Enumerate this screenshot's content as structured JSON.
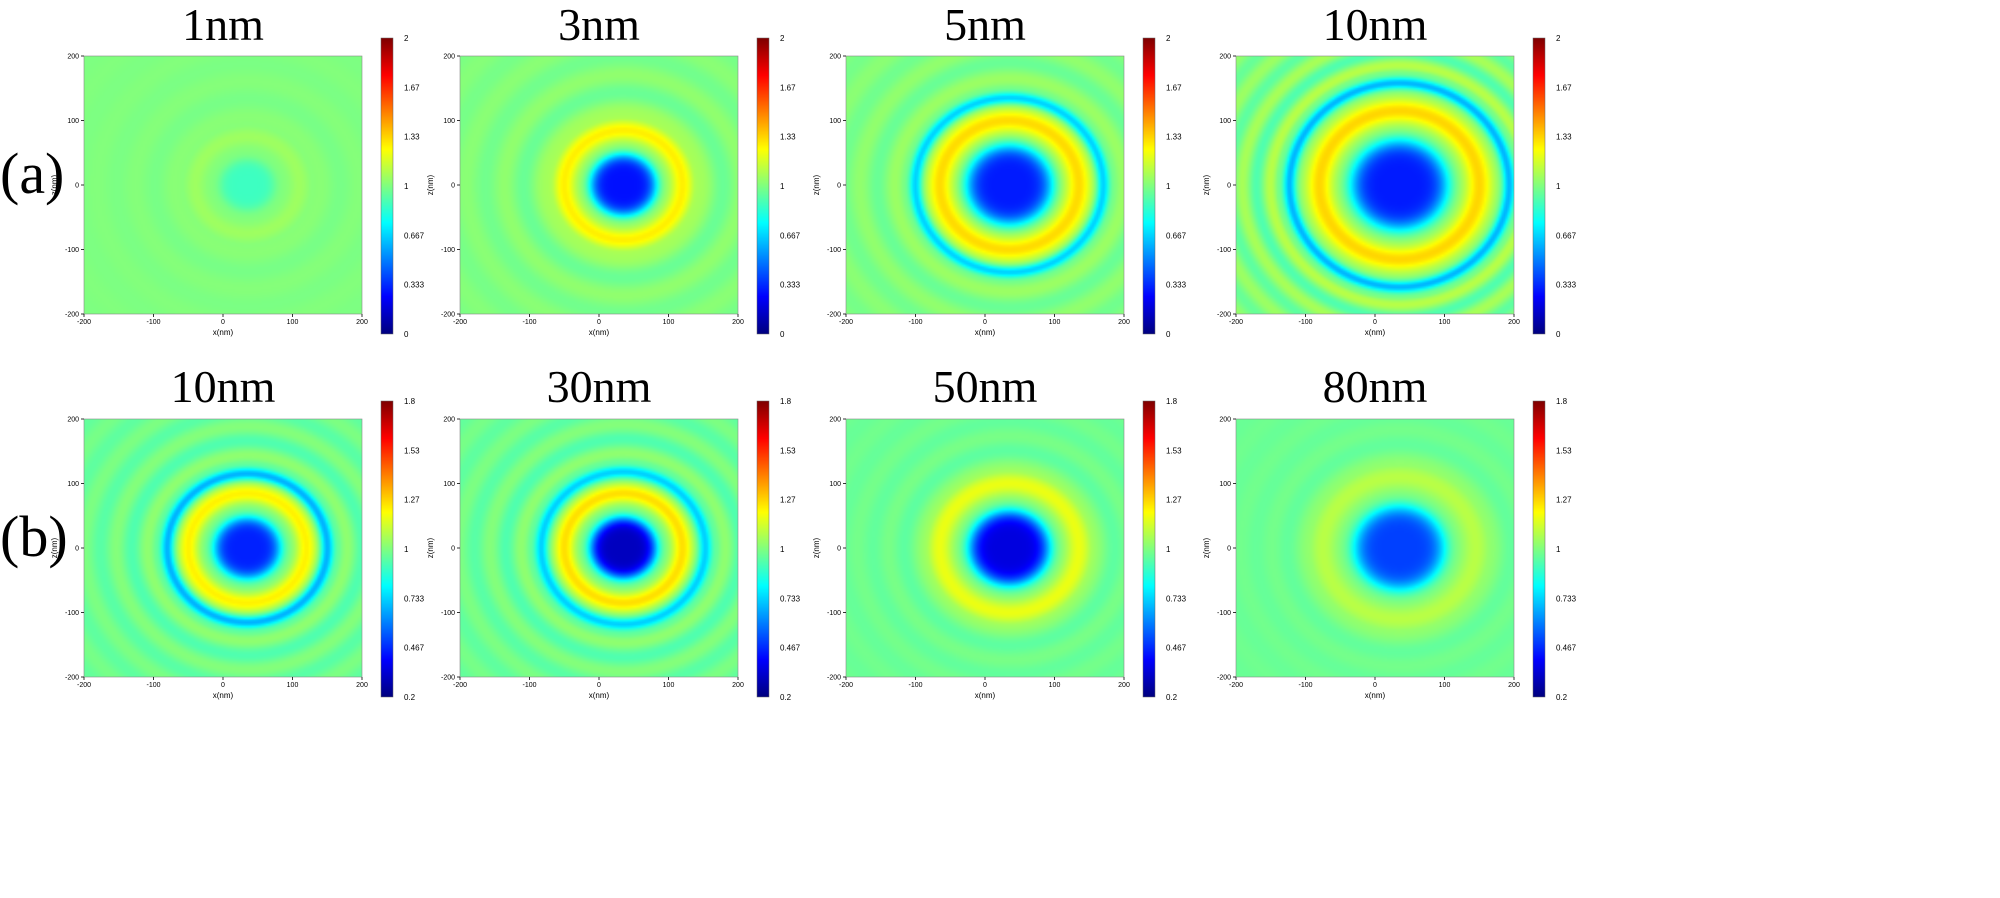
{
  "figure": {
    "row_labels": [
      "(a)",
      "(b)"
    ]
  },
  "chart_data": [
    {
      "type": "heatmap",
      "row": "(a)",
      "title": "1nm",
      "xlabel": "x(nm)",
      "ylabel": "z(nm)",
      "xlim": [
        -200,
        200
      ],
      "ylim": [
        -200,
        200
      ],
      "xticks": [
        "-200",
        "-100",
        "0",
        "100",
        "200"
      ],
      "yticks": [
        "200",
        "100",
        "0",
        "-100",
        "-200"
      ],
      "colorbar": {
        "colormap": "jet",
        "range": [
          0,
          2
        ],
        "ticks": [
          "2",
          "1.67",
          "1.33",
          "1",
          "0.667",
          "0.333",
          "0"
        ]
      },
      "field": {
        "center": [
          35,
          0
        ],
        "background": 1.0,
        "core_value": 0.87,
        "core_radius": 40,
        "ring_amplitude": 0.06,
        "ring_radius": 75,
        "ring_width": 30,
        "fringe_amplitude": 0.02,
        "fringe_period": 55
      }
    },
    {
      "type": "heatmap",
      "row": "(a)",
      "title": "3nm",
      "xlabel": "x(nm)",
      "ylabel": "z(nm)",
      "xlim": [
        -200,
        200
      ],
      "ylim": [
        -200,
        200
      ],
      "xticks": [
        "-200",
        "-100",
        "0",
        "100",
        "200"
      ],
      "yticks": [
        "200",
        "100",
        "0",
        "-100",
        "-200"
      ],
      "colorbar": {
        "colormap": "jet",
        "range": [
          0,
          2
        ],
        "ticks": [
          "2",
          "1.67",
          "1.33",
          "1",
          "0.667",
          "0.333",
          "0"
        ]
      },
      "field": {
        "center": [
          35,
          0
        ],
        "background": 1.0,
        "core_value": 0.28,
        "core_radius": 48,
        "ring_amplitude": 0.28,
        "ring_radius": 85,
        "ring_width": 34,
        "fringe_amplitude": 0.06,
        "fringe_period": 55
      }
    },
    {
      "type": "heatmap",
      "row": "(a)",
      "title": "5nm",
      "xlabel": "x(nm)",
      "ylabel": "z(nm)",
      "xlim": [
        -200,
        200
      ],
      "ylim": [
        -200,
        200
      ],
      "xticks": [
        "-200",
        "-100",
        "0",
        "100",
        "200"
      ],
      "yticks": [
        "200",
        "100",
        "0",
        "-100",
        "-200"
      ],
      "colorbar": {
        "colormap": "jet",
        "range": [
          0,
          2
        ],
        "ticks": [
          "2",
          "1.67",
          "1.33",
          "1",
          "0.667",
          "0.333",
          "0"
        ]
      },
      "field": {
        "center": [
          35,
          0
        ],
        "background": 1.0,
        "core_value": 0.3,
        "core_radius": 62,
        "ring_amplitude": 0.32,
        "ring_radius": 100,
        "ring_width": 38,
        "dark_ring_radius": 135,
        "dark_ring_amplitude": 0.35,
        "fringe_amplitude": 0.06,
        "fringe_period": 50
      }
    },
    {
      "type": "heatmap",
      "row": "(a)",
      "title": "10nm",
      "xlabel": "x(nm)",
      "ylabel": "z(nm)",
      "xlim": [
        -200,
        200
      ],
      "ylim": [
        -200,
        200
      ],
      "xticks": [
        "-200",
        "-100",
        "0",
        "100",
        "200"
      ],
      "yticks": [
        "200",
        "100",
        "0",
        "-100",
        "-200"
      ],
      "colorbar": {
        "colormap": "jet",
        "range": [
          0,
          2
        ],
        "ticks": [
          "2",
          "1.67",
          "1.33",
          "1",
          "0.667",
          "0.333",
          "0"
        ]
      },
      "field": {
        "center": [
          35,
          0
        ],
        "background": 1.0,
        "core_value": 0.3,
        "core_radius": 70,
        "ring_amplitude": 0.33,
        "ring_radius": 115,
        "ring_width": 40,
        "dark_ring_radius": 158,
        "dark_ring_amplitude": 0.4,
        "fringe_amplitude": 0.12,
        "fringe_period": 40
      }
    },
    {
      "type": "heatmap",
      "row": "(b)",
      "title": "10nm",
      "xlabel": "x(nm)",
      "ylabel": "z(nm)",
      "xlim": [
        -200,
        200
      ],
      "ylim": [
        -200,
        200
      ],
      "xticks": [
        "-200",
        "-100",
        "0",
        "100",
        "200"
      ],
      "yticks": [
        "200",
        "100",
        "0",
        "-100",
        "-200"
      ],
      "colorbar": {
        "colormap": "jet",
        "range": [
          0.2,
          1.8
        ],
        "ticks": [
          "1.8",
          "1.53",
          "1.27",
          "1",
          "0.733",
          "0.467",
          "0.2"
        ]
      },
      "field": {
        "center": [
          35,
          0
        ],
        "background": 0.97,
        "core_value": 0.45,
        "core_radius": 48,
        "ring_amplitude": 0.25,
        "ring_radius": 85,
        "ring_width": 32,
        "dark_ring_radius": 115,
        "dark_ring_amplitude": 0.3,
        "fringe_amplitude": 0.06,
        "fringe_period": 45
      }
    },
    {
      "type": "heatmap",
      "row": "(b)",
      "title": "30nm",
      "xlabel": "x(nm)",
      "ylabel": "z(nm)",
      "xlim": [
        -200,
        200
      ],
      "ylim": [
        -200,
        200
      ],
      "xticks": [
        "-200",
        "-100",
        "0",
        "100",
        "200"
      ],
      "yticks": [
        "200",
        "100",
        "0",
        "-100",
        "-200"
      ],
      "colorbar": {
        "colormap": "jet",
        "range": [
          0.2,
          1.8
        ],
        "ticks": [
          "1.8",
          "1.53",
          "1.27",
          "1",
          "0.733",
          "0.467",
          "0.2"
        ]
      },
      "field": {
        "center": [
          35,
          0
        ],
        "background": 0.97,
        "core_value": 0.3,
        "core_radius": 48,
        "ring_amplitude": 0.28,
        "ring_radius": 85,
        "ring_width": 32,
        "dark_ring_radius": 118,
        "dark_ring_amplitude": 0.25,
        "fringe_amplitude": 0.06,
        "fringe_period": 45
      }
    },
    {
      "type": "heatmap",
      "row": "(b)",
      "title": "50nm",
      "xlabel": "x(nm)",
      "ylabel": "z(nm)",
      "xlim": [
        -200,
        200
      ],
      "ylim": [
        -200,
        200
      ],
      "xticks": [
        "-200",
        "-100",
        "0",
        "100",
        "200"
      ],
      "yticks": [
        "200",
        "100",
        "0",
        "-100",
        "-200"
      ],
      "colorbar": {
        "colormap": "jet",
        "range": [
          0.2,
          1.8
        ],
        "ticks": [
          "1.8",
          "1.53",
          "1.27",
          "1",
          "0.733",
          "0.467",
          "0.2"
        ]
      },
      "field": {
        "center": [
          35,
          0
        ],
        "background": 0.97,
        "core_value": 0.35,
        "core_radius": 58,
        "ring_amplitude": 0.2,
        "ring_radius": 100,
        "ring_width": 40,
        "fringe_amplitude": 0.03,
        "fringe_period": 45
      }
    },
    {
      "type": "heatmap",
      "row": "(b)",
      "title": "80nm",
      "xlabel": "x(nm)",
      "ylabel": "z(nm)",
      "xlim": [
        -200,
        200
      ],
      "ylim": [
        -200,
        200
      ],
      "xticks": [
        "-200",
        "-100",
        "0",
        "100",
        "200"
      ],
      "yticks": [
        "200",
        "100",
        "0",
        "-100",
        "-200"
      ],
      "colorbar": {
        "colormap": "jet",
        "range": [
          0.2,
          1.8
        ],
        "ticks": [
          "1.8",
          "1.53",
          "1.27",
          "1",
          "0.733",
          "0.467",
          "0.2"
        ]
      },
      "field": {
        "center": [
          35,
          0
        ],
        "background": 0.97,
        "core_value": 0.5,
        "core_radius": 65,
        "ring_amplitude": 0.12,
        "ring_radius": 110,
        "ring_width": 45,
        "fringe_amplitude": 0.02,
        "fringe_period": 45
      }
    }
  ]
}
